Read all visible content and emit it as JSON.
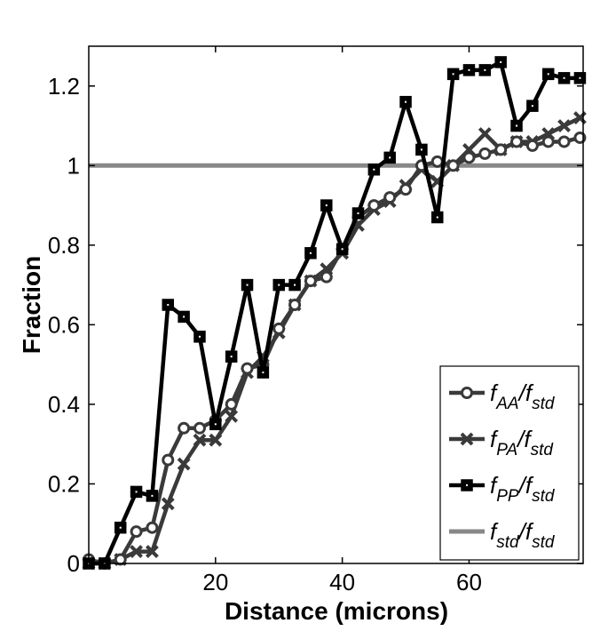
{
  "chart_data": {
    "type": "line",
    "xlabel": "Distance (microns)",
    "ylabel": "Fraction",
    "xlim": [
      0,
      78
    ],
    "ylim": [
      0,
      1.3
    ],
    "x_ticks": [
      20,
      40,
      60
    ],
    "y_ticks": [
      0,
      0.2,
      0.4,
      0.6,
      0.8,
      1,
      1.2
    ],
    "y_tick_labels": [
      "0",
      "0.2",
      "0.4",
      "0.6",
      "0.8",
      "1",
      "1.2"
    ],
    "grid": false,
    "legend_position": "bottom-right",
    "series": [
      {
        "name": "f_AA/f_std",
        "label_main": "f",
        "label_sub": "AA",
        "label_sep": "/",
        "label_main2": "f",
        "label_sub2": "std",
        "marker": "circle",
        "color": "#3a3a3a",
        "x": [
          0,
          2.5,
          5,
          7.5,
          10,
          12.5,
          15,
          17.5,
          20,
          22.5,
          25,
          27.5,
          30,
          32.5,
          35,
          37.5,
          40,
          42.5,
          45,
          47.5,
          50,
          52.5,
          55,
          57.5,
          60,
          62.5,
          65,
          67.5,
          70,
          72.5,
          75,
          77.5
        ],
        "y": [
          0.01,
          0,
          0.01,
          0.08,
          0.09,
          0.26,
          0.34,
          0.34,
          0.36,
          0.4,
          0.49,
          0.5,
          0.59,
          0.65,
          0.71,
          0.72,
          0.79,
          0.87,
          0.9,
          0.92,
          0.94,
          1.0,
          1.01,
          1.0,
          1.02,
          1.03,
          1.04,
          1.06,
          1.05,
          1.06,
          1.06,
          1.07
        ]
      },
      {
        "name": "f_PA/f_std",
        "label_main": "f",
        "label_sub": "PA",
        "label_sep": "/",
        "label_main2": "f",
        "label_sub2": "std",
        "marker": "x",
        "color": "#3a3a3a",
        "x": [
          0,
          2.5,
          5,
          7.5,
          10,
          12.5,
          15,
          17.5,
          20,
          22.5,
          25,
          27.5,
          30,
          32.5,
          35,
          37.5,
          40,
          42.5,
          45,
          47.5,
          50,
          52.5,
          55,
          57.5,
          60,
          62.5,
          65,
          67.5,
          70,
          72.5,
          75,
          77.5
        ],
        "y": [
          0,
          0,
          0.01,
          0.03,
          0.03,
          0.15,
          0.25,
          0.31,
          0.31,
          0.37,
          0.48,
          0.52,
          0.58,
          0.65,
          0.71,
          0.74,
          0.78,
          0.85,
          0.89,
          0.91,
          0.95,
          0.99,
          0.96,
          1.0,
          1.04,
          1.08,
          1.04,
          1.06,
          1.06,
          1.08,
          1.1,
          1.12
        ]
      },
      {
        "name": "f_PP/f_std",
        "label_main": "f",
        "label_sub": "PP",
        "label_sep": "/",
        "label_main2": "f",
        "label_sub2": "std",
        "marker": "square",
        "color": "#000000",
        "x": [
          0,
          2.5,
          5,
          7.5,
          10,
          12.5,
          15,
          17.5,
          20,
          22.5,
          25,
          27.5,
          30,
          32.5,
          35,
          37.5,
          40,
          42.5,
          45,
          47.5,
          50,
          52.5,
          55,
          57.5,
          60,
          62.5,
          65,
          67.5,
          70,
          72.5,
          75,
          77.5
        ],
        "y": [
          0,
          0,
          0.09,
          0.18,
          0.17,
          0.65,
          0.62,
          0.57,
          0.35,
          0.52,
          0.7,
          0.48,
          0.7,
          0.7,
          0.78,
          0.9,
          0.79,
          0.88,
          0.99,
          1.02,
          1.16,
          1.04,
          0.87,
          1.23,
          1.24,
          1.24,
          1.26,
          1.1,
          1.15,
          1.23,
          1.22,
          1.22
        ]
      },
      {
        "name": "f_std/f_std",
        "label_main": "f",
        "label_sub": "std",
        "label_sep": "/",
        "label_main2": "f",
        "label_sub2": "std",
        "marker": "none",
        "color": "#888888",
        "x": [
          0,
          78
        ],
        "y": [
          1,
          1
        ]
      }
    ]
  }
}
